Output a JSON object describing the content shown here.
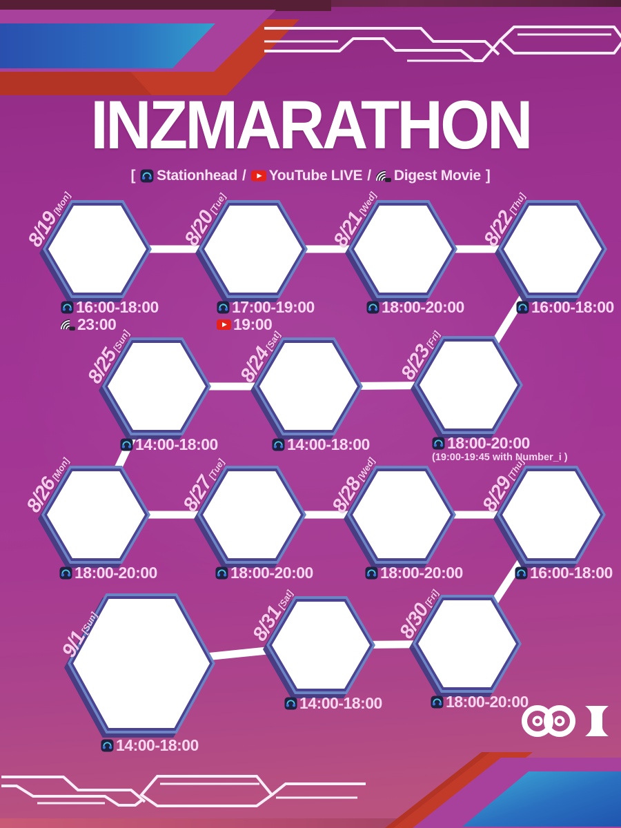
{
  "title": "INZMARATHON",
  "subtitle": {
    "prefix": "[",
    "suffix": "]",
    "separator": "/",
    "platforms": [
      {
        "icon": "stationhead-icon",
        "label": "Stationhead"
      },
      {
        "icon": "youtube-icon",
        "label": "YouTube LIVE"
      },
      {
        "icon": "digest-icon",
        "label": "Digest Movie"
      }
    ]
  },
  "events": [
    {
      "date": "8/19",
      "day": "[Mon]",
      "times": [
        {
          "icon": "stationhead-icon",
          "text": "16:00-18:00"
        },
        {
          "icon": "digest-icon",
          "text": "23:00"
        }
      ]
    },
    {
      "date": "8/20",
      "day": "[Tue]",
      "times": [
        {
          "icon": "stationhead-icon",
          "text": "17:00-19:00"
        },
        {
          "icon": "youtube-icon",
          "text": "19:00"
        }
      ]
    },
    {
      "date": "8/21",
      "day": "[Wed]",
      "times": [
        {
          "icon": "stationhead-icon",
          "text": "18:00-20:00"
        }
      ]
    },
    {
      "date": "8/22",
      "day": "[Thu]",
      "times": [
        {
          "icon": "stationhead-icon",
          "text": "16:00-18:00"
        }
      ]
    },
    {
      "date": "8/25",
      "day": "[Sun]",
      "times": [
        {
          "icon": "stationhead-icon",
          "text": "14:00-18:00"
        }
      ]
    },
    {
      "date": "8/24",
      "day": "[Sat]",
      "times": [
        {
          "icon": "stationhead-icon",
          "text": "14:00-18:00"
        }
      ]
    },
    {
      "date": "8/23",
      "day": "[Fri]",
      "times": [
        {
          "icon": "stationhead-icon",
          "text": "18:00-20:00"
        }
      ],
      "note": "(19:00-19:45  with Number_i )"
    },
    {
      "date": "8/26",
      "day": "[Mon]",
      "times": [
        {
          "icon": "stationhead-icon",
          "text": "18:00-20:00"
        }
      ]
    },
    {
      "date": "8/27",
      "day": "[Tue]",
      "times": [
        {
          "icon": "stationhead-icon",
          "text": "18:00-20:00"
        }
      ]
    },
    {
      "date": "8/28",
      "day": "[Wed]",
      "times": [
        {
          "icon": "stationhead-icon",
          "text": "18:00-20:00"
        }
      ]
    },
    {
      "date": "8/29",
      "day": "[Thu]",
      "times": [
        {
          "icon": "stationhead-icon",
          "text": "16:00-18:00"
        }
      ]
    },
    {
      "date": "9/1",
      "day": "[Sun]",
      "times": [
        {
          "icon": "stationhead-icon",
          "text": "14:00-18:00"
        }
      ]
    },
    {
      "date": "8/31",
      "day": "[Sat]",
      "times": [
        {
          "icon": "stationhead-icon",
          "text": "14:00-18:00"
        }
      ]
    },
    {
      "date": "8/30",
      "day": "[Fri]",
      "times": [
        {
          "icon": "stationhead-icon",
          "text": "18:00-20:00"
        }
      ]
    }
  ],
  "logo": "INI",
  "colors": {
    "background_magenta": "#a23595",
    "hexagon_border_blue": "#6b85c5",
    "hexagon_shadow_indigo": "#423c82",
    "text_pink": "#f8d7f0",
    "accent_blue_band": "#2b57b5",
    "accent_red_band": "#c0392a",
    "youtube_red": "#e62117",
    "connector_white": "#ffffff"
  }
}
